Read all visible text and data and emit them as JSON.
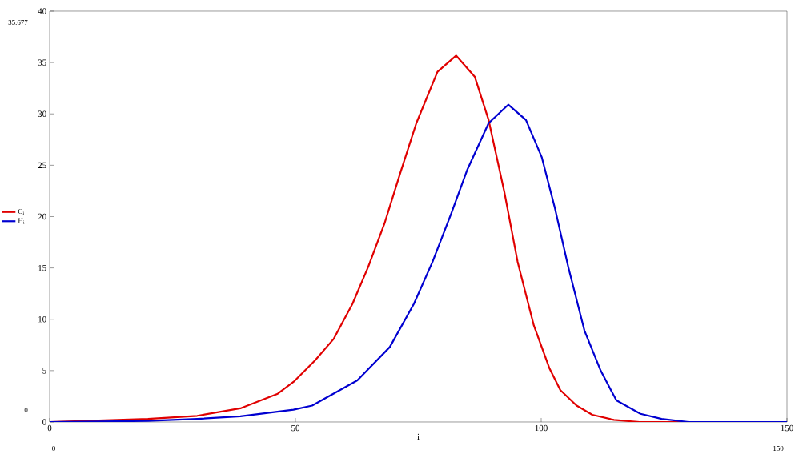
{
  "chart_data": {
    "type": "line",
    "xlabel": "i",
    "x": [
      0,
      10,
      20,
      30,
      38.8,
      46.4,
      49.6,
      54.0,
      57.8,
      61.6,
      64.8,
      68.1,
      71.3,
      74.6,
      78.9,
      82.7,
      86.5,
      89.3,
      92.5,
      95.2,
      98.5,
      101.7,
      103.9,
      107.2,
      110.4,
      114.8,
      120,
      130,
      150
    ],
    "series": [
      {
        "name": "C$_{i}$",
        "color": "#e00000",
        "values": [
          0,
          null,
          0.3,
          0.6,
          1.33,
          2.75,
          3.9,
          6.0,
          8.1,
          11.5,
          15.1,
          19.3,
          24.2,
          29.1,
          34.1,
          35.677,
          33.6,
          29.4,
          22.4,
          15.6,
          9.4,
          5.2,
          3.1,
          1.6,
          0.7,
          0.2,
          0,
          0,
          0
        ]
      },
      {
        "name": "H$_{i}$",
        "color": "#0000d0",
        "x": [
          0,
          20,
          30,
          38.8,
          49.6,
          53.4,
          62.6,
          69.2,
          74.1,
          77.9,
          81.7,
          84.9,
          89.3,
          93.3,
          96.9,
          100.1,
          102.8,
          105.5,
          108.8,
          112.1,
          115.3,
          120.2,
          124.5,
          130,
          150
        ],
        "values": [
          0,
          0.1,
          0.3,
          0.55,
          1.2,
          1.6,
          4.05,
          7.3,
          11.5,
          15.6,
          20.3,
          24.5,
          29.1,
          30.9,
          29.4,
          25.8,
          20.8,
          15.1,
          8.9,
          5.0,
          2.1,
          0.8,
          0.3,
          0,
          0
        ]
      }
    ],
    "xlim": [
      0,
      150
    ],
    "ylim": [
      0,
      40
    ],
    "xticks": [
      0,
      50,
      100,
      150
    ],
    "yticks": [
      0,
      5,
      10,
      15,
      20,
      25,
      30,
      35,
      40
    ],
    "legend": "left",
    "grid": false,
    "marker": "none",
    "line_style": "solid",
    "annotations": [
      "35.677",
      "0",
      "0",
      "150"
    ]
  }
}
